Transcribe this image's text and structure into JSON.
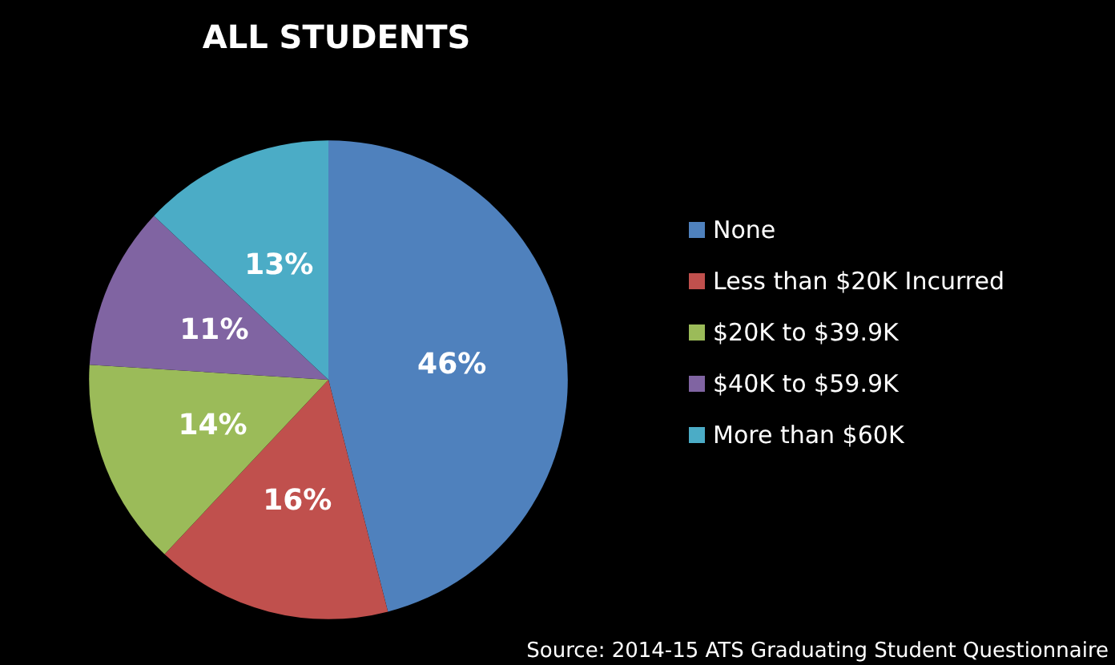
{
  "chart_data": {
    "type": "pie",
    "title": "ALL STUDENTS",
    "categories": [
      "None",
      "Less than $20K Incurred",
      "$20K to $39.9K",
      "$40K to $59.9K",
      "More than $60K"
    ],
    "values": [
      46,
      16,
      14,
      11,
      13
    ],
    "value_labels": [
      "46%",
      "16%",
      "14%",
      "11%",
      "13%"
    ],
    "colors": [
      "#4f81bd",
      "#c0504d",
      "#9bbb59",
      "#8064a2",
      "#4bacc6"
    ],
    "legend": "right",
    "annotations": [
      "Source: 2014-15 ATS Graduating Student Questionnaire"
    ]
  }
}
